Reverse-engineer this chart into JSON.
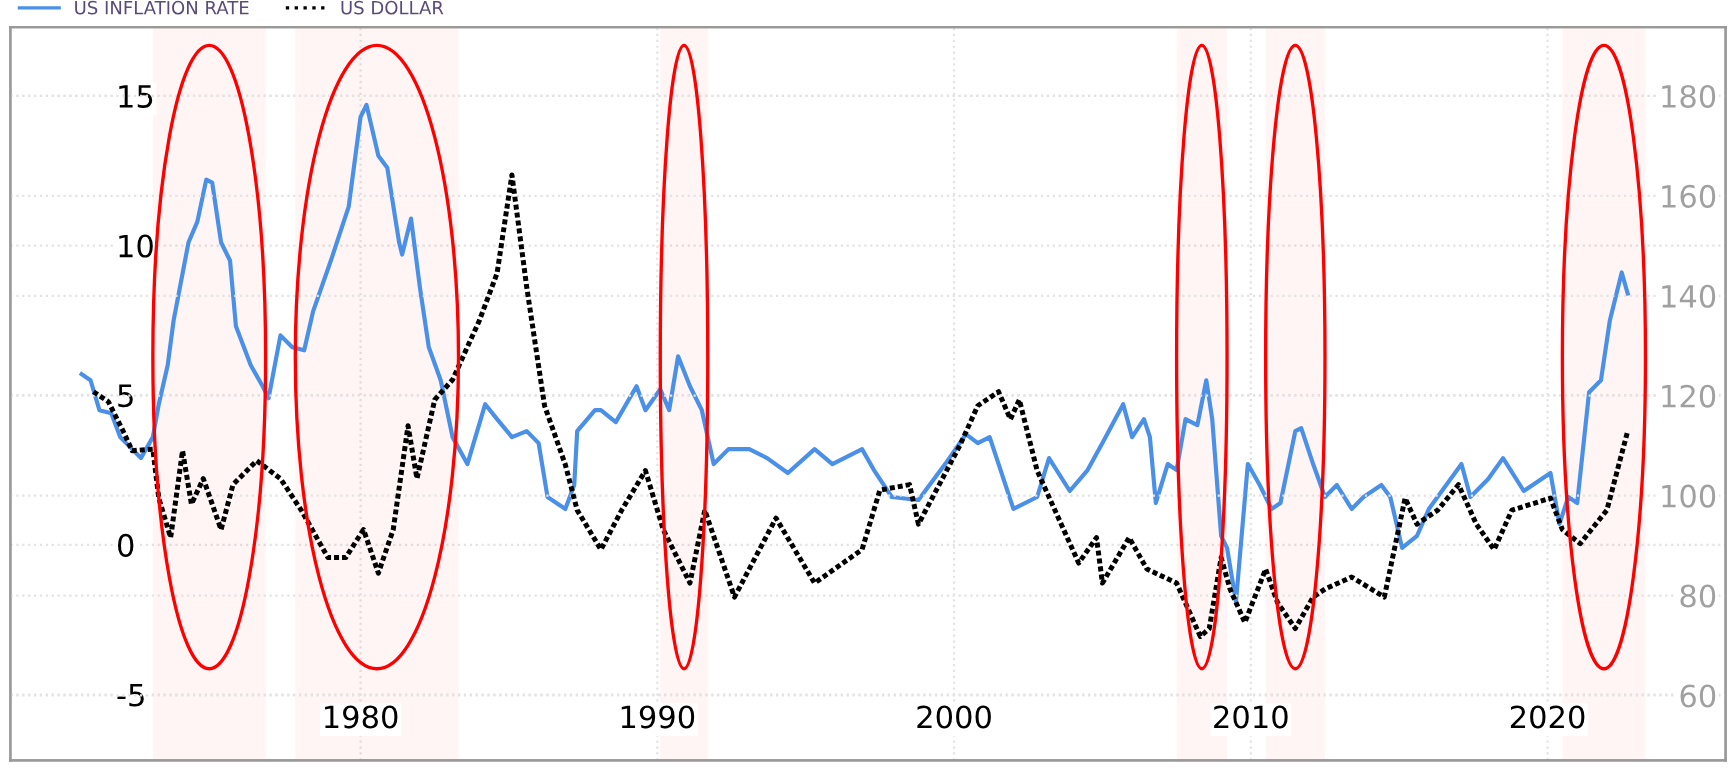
{
  "chart_data": {
    "type": "line",
    "xlim": [
      1968.2,
      2026.0
    ],
    "xticks": [
      1980,
      1990,
      2000,
      2010,
      2020
    ],
    "ylim": [
      -7.2,
      17.3
    ],
    "yticks": [
      -5,
      0,
      5,
      10,
      15
    ],
    "y2lim": [
      47,
      193.8
    ],
    "y2ticks": [
      60,
      80,
      100,
      120,
      140,
      160,
      180
    ],
    "grid": true,
    "legend": "top left",
    "series": [
      {
        "name": "US INFLATION RATE",
        "color": "#4a90e8",
        "line_style": "solid",
        "x": [
          1970.6,
          1970.9,
          1971.2,
          1971.6,
          1971.9,
          1972.3,
          1972.6,
          1973.0,
          1973.2,
          1973.5,
          1973.7,
          1974.2,
          1974.5,
          1974.8,
          1975.0,
          1975.3,
          1975.6,
          1975.8,
          1976.3,
          1976.7,
          1976.9,
          1977.3,
          1977.7,
          1978.1,
          1978.4,
          1979.0,
          1979.6,
          1980.0,
          1980.2,
          1980.6,
          1980.9,
          1981.3,
          1981.4,
          1981.7,
          1982.0,
          1982.3,
          1982.7,
          1983.1,
          1983.6,
          1984.2,
          1984.6,
          1985.1,
          1985.6,
          1986.0,
          1986.3,
          1986.9,
          1987.2,
          1987.3,
          1987.9,
          1988.1,
          1988.6,
          1989.3,
          1989.6,
          1990.1,
          1990.4,
          1990.7,
          1991.1,
          1991.5,
          1991.9,
          1992.4,
          1993.1,
          1993.7,
          1994.4,
          1995.3,
          1995.9,
          1996.9,
          1997.3,
          1997.9,
          1998.8,
          1999.7,
          2000.4,
          2000.8,
          2001.2,
          2002.0,
          2002.8,
          2003.2,
          2003.9,
          2004.5,
          2005.0,
          2005.7,
          2006.0,
          2006.4,
          2006.6,
          2006.8,
          2007.2,
          2007.5,
          2007.8,
          2008.2,
          2008.5,
          2008.7,
          2009.0,
          2009.2,
          2009.5,
          2009.9,
          2010.3,
          2010.7,
          2011.0,
          2011.5,
          2011.7,
          2012.1,
          2012.5,
          2012.9,
          2013.4,
          2013.8,
          2014.4,
          2014.7,
          2015.1,
          2015.6,
          2016.0,
          2017.1,
          2017.4,
          2018.0,
          2018.5,
          2019.2,
          2020.1,
          2020.4,
          2020.7,
          2021.0,
          2021.4,
          2021.8,
          2022.1,
          2022.5,
          2022.7
        ],
        "values": [
          5.7,
          5.5,
          4.5,
          4.4,
          3.6,
          3.2,
          2.9,
          3.6,
          4.7,
          6.0,
          7.5,
          10.1,
          10.8,
          12.2,
          12.1,
          10.1,
          9.5,
          7.3,
          6.0,
          5.3,
          4.9,
          7.0,
          6.6,
          6.5,
          7.8,
          9.5,
          11.3,
          14.3,
          14.7,
          13.0,
          12.6,
          10.1,
          9.7,
          10.9,
          8.6,
          6.6,
          5.5,
          3.6,
          2.7,
          4.7,
          4.2,
          3.6,
          3.8,
          3.4,
          1.6,
          1.2,
          2.0,
          3.8,
          4.5,
          4.5,
          4.1,
          5.3,
          4.5,
          5.2,
          4.5,
          6.3,
          5.3,
          4.5,
          2.7,
          3.2,
          3.2,
          2.9,
          2.4,
          3.2,
          2.7,
          3.2,
          2.5,
          1.6,
          1.5,
          2.7,
          3.7,
          3.4,
          3.6,
          1.2,
          1.6,
          2.9,
          1.8,
          2.5,
          3.4,
          4.7,
          3.6,
          4.2,
          3.6,
          1.4,
          2.7,
          2.5,
          4.2,
          4.0,
          5.5,
          4.2,
          0.3,
          -0.1,
          -1.9,
          2.7,
          2.0,
          1.2,
          1.4,
          3.8,
          3.9,
          2.7,
          1.6,
          2.0,
          1.2,
          1.6,
          2.0,
          1.6,
          -0.1,
          0.3,
          1.2,
          2.7,
          1.6,
          2.2,
          2.9,
          1.8,
          2.4,
          0.7,
          1.6,
          1.4,
          5.1,
          5.5,
          7.5,
          9.1,
          8.4
        ]
      },
      {
        "name": "US DOLLAR",
        "color": "#000000",
        "line_style": "dotted",
        "axis": "y2",
        "x": [
          1971.0,
          1971.5,
          1972.0,
          1972.3,
          1973.0,
          1973.2,
          1973.6,
          1974.0,
          1974.3,
          1974.7,
          1975.3,
          1975.7,
          1976.5,
          1977.3,
          1978.0,
          1978.9,
          1979.5,
          1980.1,
          1980.6,
          1981.1,
          1981.6,
          1981.9,
          1982.5,
          1983.1,
          1984.0,
          1984.6,
          1985.1,
          1985.6,
          1986.2,
          1986.9,
          1987.3,
          1988.1,
          1988.8,
          1989.6,
          1990.2,
          1991.1,
          1991.6,
          1992.6,
          1994.0,
          1995.3,
          1996.9,
          1997.5,
          1998.5,
          1998.8,
          2000.2,
          2000.8,
          2001.5,
          2001.9,
          2002.2,
          2002.8,
          2004.2,
          2004.8,
          2005.0,
          2005.9,
          2006.5,
          2007.5,
          2008.3,
          2008.6,
          2009.0,
          2009.3,
          2009.8,
          2010.5,
          2010.9,
          2011.5,
          2012.1,
          2012.5,
          2013.4,
          2014.5,
          2015.2,
          2015.6,
          2016.3,
          2017.0,
          2017.6,
          2018.2,
          2018.8,
          2020.1,
          2020.5,
          2021.1,
          2022.0,
          2022.7
        ],
        "values": [
          120.8,
          118.8,
          112.9,
          109.0,
          109.3,
          99.5,
          91.6,
          109.0,
          98.3,
          103.4,
          93.2,
          102.2,
          107.0,
          103.4,
          97.1,
          87.6,
          87.6,
          93.2,
          84.5,
          93.2,
          114.0,
          103.4,
          119.2,
          123.2,
          135.0,
          144.5,
          164.2,
          141.7,
          118.0,
          106.2,
          97.1,
          89.2,
          97.1,
          105.0,
          93.2,
          82.5,
          97.1,
          79.7,
          95.5,
          82.5,
          89.2,
          101.1,
          102.2,
          94.3,
          110.1,
          118.0,
          120.8,
          115.3,
          119.2,
          105.0,
          86.5,
          91.6,
          82.5,
          91.6,
          85.3,
          82.5,
          71.8,
          73.4,
          87.6,
          81.3,
          74.6,
          85.3,
          78.6,
          73.4,
          79.7,
          81.3,
          83.7,
          79.7,
          99.5,
          94.3,
          97.1,
          102.2,
          94.3,
          89.2,
          97.1,
          99.5,
          93.2,
          90.4,
          97.1,
          112.9
        ]
      }
    ],
    "bands": [
      {
        "axis": "x",
        "from": 1973.0,
        "to": 1976.8,
        "color": "#ff0000"
      },
      {
        "axis": "x",
        "from": 1977.8,
        "to": 1983.3,
        "color": "#ff0000"
      },
      {
        "axis": "x",
        "from": 1990.1,
        "to": 1991.7,
        "color": "#ff0000"
      },
      {
        "axis": "x",
        "from": 2007.5,
        "to": 2009.2,
        "color": "#ff0000"
      },
      {
        "axis": "x",
        "from": 2010.5,
        "to": 2012.5,
        "color": "#ff0000"
      },
      {
        "axis": "x",
        "from": 2020.5,
        "to": 2023.3,
        "color": "#ff0000"
      }
    ]
  }
}
